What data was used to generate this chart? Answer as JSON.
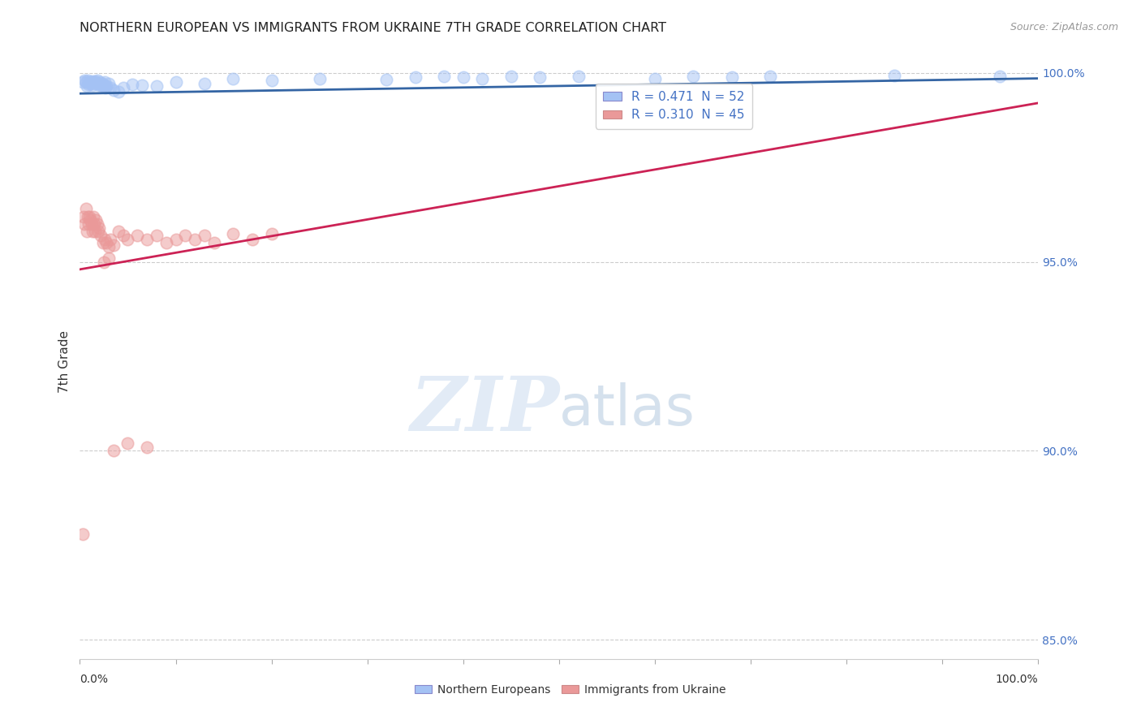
{
  "title": "NORTHERN EUROPEAN VS IMMIGRANTS FROM UKRAINE 7TH GRADE CORRELATION CHART",
  "source": "Source: ZipAtlas.com",
  "ylabel": "7th Grade",
  "legend_blue_label": "R = 0.471  N = 52",
  "legend_pink_label": "R = 0.310  N = 45",
  "legend_label1": "Northern Europeans",
  "legend_label2": "Immigrants from Ukraine",
  "blue_color": "#a4c2f4",
  "pink_color": "#ea9999",
  "blue_line_color": "#3465a4",
  "pink_line_color": "#cc2255",
  "blue_scatter_x": [
    0.003,
    0.005,
    0.006,
    0.007,
    0.008,
    0.009,
    0.01,
    0.011,
    0.012,
    0.013,
    0.014,
    0.015,
    0.016,
    0.017,
    0.018,
    0.019,
    0.02,
    0.021,
    0.022,
    0.023,
    0.024,
    0.025,
    0.026,
    0.027,
    0.028,
    0.03,
    0.032,
    0.035,
    0.04,
    0.045,
    0.055,
    0.065,
    0.08,
    0.1,
    0.13,
    0.16,
    0.2,
    0.25,
    0.32,
    0.35,
    0.38,
    0.4,
    0.42,
    0.45,
    0.48,
    0.52,
    0.6,
    0.64,
    0.68,
    0.72,
    0.85,
    0.96
  ],
  "blue_scatter_y": [
    0.9975,
    0.998,
    0.9975,
    0.9965,
    0.998,
    0.997,
    0.9975,
    0.9972,
    0.9978,
    0.9968,
    0.9975,
    0.9972,
    0.9978,
    0.9975,
    0.998,
    0.9972,
    0.9968,
    0.9975,
    0.997,
    0.9965,
    0.9972,
    0.9968,
    0.9975,
    0.996,
    0.9965,
    0.9972,
    0.996,
    0.9955,
    0.995,
    0.996,
    0.997,
    0.9968,
    0.9965,
    0.9975,
    0.9972,
    0.9985,
    0.998,
    0.9985,
    0.9982,
    0.9988,
    0.999,
    0.9988,
    0.9985,
    0.999,
    0.9988,
    0.999,
    0.9985,
    0.999,
    0.9988,
    0.999,
    0.9992,
    0.999
  ],
  "pink_scatter_x": [
    0.003,
    0.004,
    0.005,
    0.006,
    0.007,
    0.008,
    0.009,
    0.01,
    0.011,
    0.012,
    0.013,
    0.014,
    0.015,
    0.016,
    0.017,
    0.018,
    0.019,
    0.02,
    0.022,
    0.024,
    0.026,
    0.028,
    0.03,
    0.032,
    0.035,
    0.04,
    0.045,
    0.05,
    0.06,
    0.07,
    0.08,
    0.09,
    0.1,
    0.11,
    0.12,
    0.13,
    0.14,
    0.16,
    0.18,
    0.2,
    0.025,
    0.03,
    0.035,
    0.05,
    0.07
  ],
  "pink_scatter_y": [
    0.878,
    0.962,
    0.96,
    0.964,
    0.958,
    0.962,
    0.96,
    0.962,
    0.961,
    0.96,
    0.958,
    0.962,
    0.96,
    0.958,
    0.961,
    0.96,
    0.958,
    0.959,
    0.957,
    0.955,
    0.956,
    0.955,
    0.954,
    0.956,
    0.9545,
    0.958,
    0.957,
    0.956,
    0.957,
    0.956,
    0.957,
    0.955,
    0.956,
    0.957,
    0.956,
    0.957,
    0.955,
    0.9575,
    0.956,
    0.9575,
    0.95,
    0.951,
    0.9,
    0.902,
    0.901
  ],
  "xmin": 0.0,
  "xmax": 1.0,
  "ymin": 0.845,
  "ymax": 1.002,
  "right_yticks": [
    1.0,
    0.95,
    0.9,
    0.85
  ],
  "right_yticklabels": [
    "100.0%",
    "95.0%",
    "90.0%",
    "85.0%"
  ],
  "watermark_zip": "ZIP",
  "watermark_atlas": "atlas",
  "background_color": "#ffffff"
}
